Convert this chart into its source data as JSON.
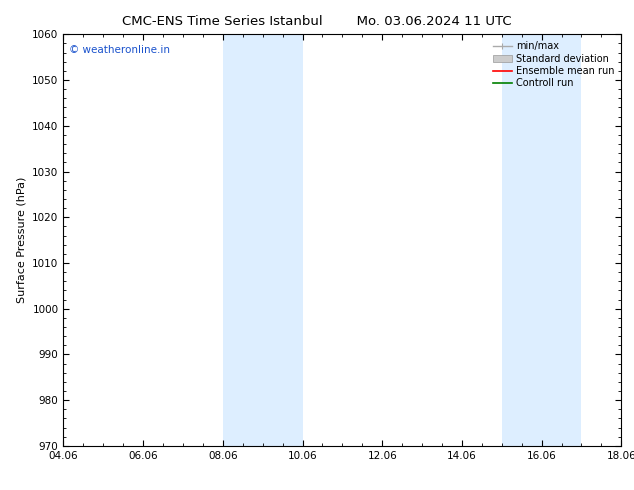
{
  "title_left": "CMC-ENS Time Series Istanbul",
  "title_right": "Mo. 03.06.2024 11 UTC",
  "ylabel": "Surface Pressure (hPa)",
  "ylim": [
    970,
    1060
  ],
  "yticks": [
    970,
    980,
    990,
    1000,
    1010,
    1020,
    1030,
    1040,
    1050,
    1060
  ],
  "xlim": [
    0,
    14
  ],
  "xtick_positions": [
    0,
    2,
    4,
    6,
    8,
    10,
    12,
    14
  ],
  "xtick_labels": [
    "04.06",
    "06.06",
    "08.06",
    "10.06",
    "12.06",
    "14.06",
    "16.06",
    "18.06"
  ],
  "shaded_bands": [
    {
      "x_start": 4.0,
      "x_end": 6.0
    },
    {
      "x_start": 11.0,
      "x_end": 13.0
    }
  ],
  "shaded_color": "#ddeeff",
  "watermark": "© weatheronline.in",
  "watermark_color": "#1a52cc",
  "bg_color": "#ffffff",
  "title_fontsize": 9.5,
  "ylabel_fontsize": 8,
  "tick_fontsize": 7.5,
  "watermark_fontsize": 7.5,
  "legend_fontsize": 7,
  "legend_minmax_color": "#aaaaaa",
  "legend_std_color": "#cccccc",
  "legend_ens_color": "red",
  "legend_ctrl_color": "green"
}
